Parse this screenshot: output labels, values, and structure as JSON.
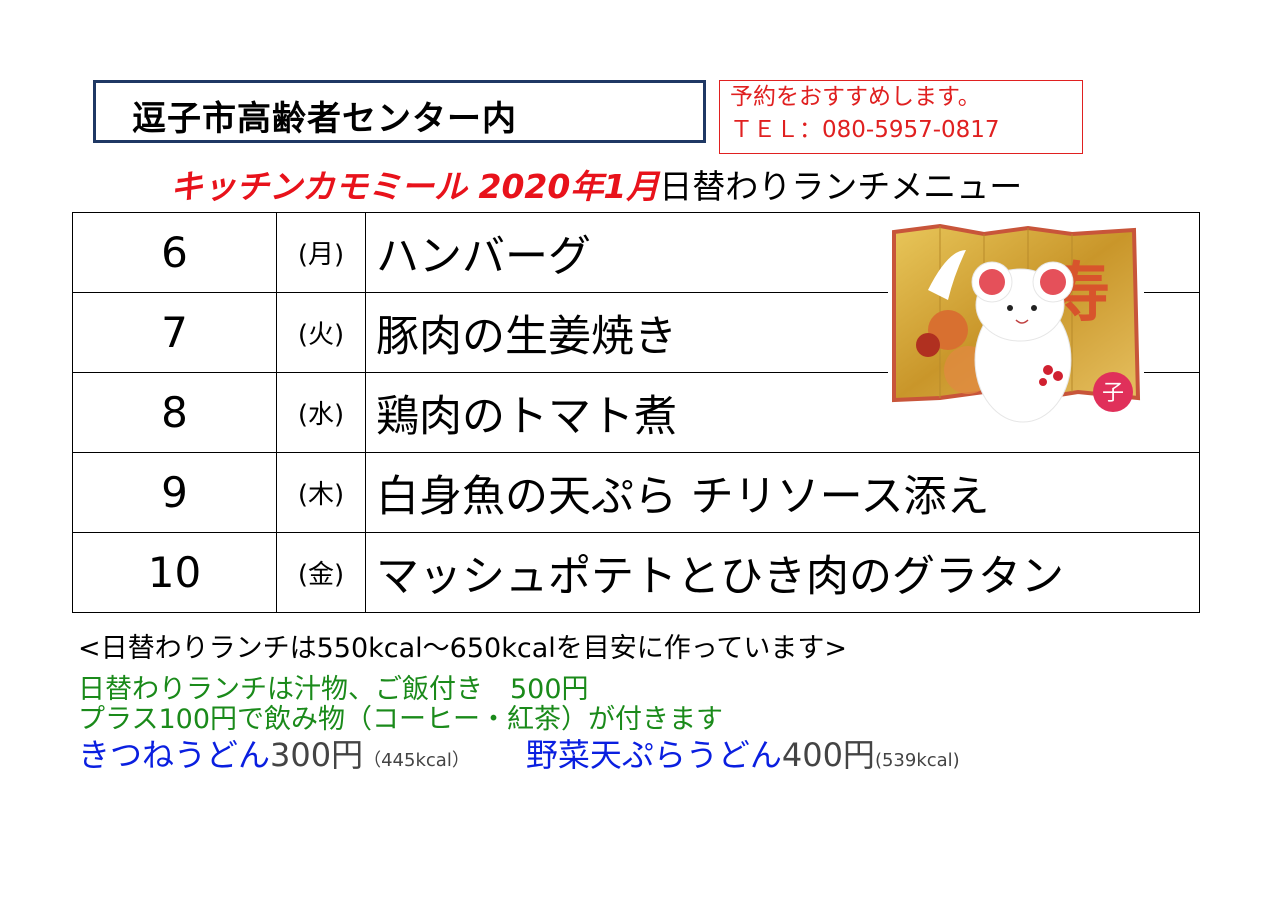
{
  "header": {
    "venue": "逗子市高齢者センター内",
    "reservation_note": "予約をおすすめします。",
    "phone": "ＴＥＬ：080-5957-0817",
    "title_shop": "キッチンカモミール 2020年1月",
    "title_rest": "日替わりランチメニュー"
  },
  "menu": [
    {
      "day": "6",
      "weekday": "(月)",
      "dish": "ハンバーグ"
    },
    {
      "day": "7",
      "weekday": "(火)",
      "dish": "豚肉の生姜焼き"
    },
    {
      "day": "8",
      "weekday": "(水)",
      "dish": "鶏肉のトマト煮"
    },
    {
      "day": "9",
      "weekday": "(木)",
      "dish": "白身魚の天ぷら チリソース添え"
    },
    {
      "day": "10",
      "weekday": "(金)",
      "dish": "マッシュポテトとひき肉のグラタン"
    }
  ],
  "illustration": {
    "kanji_kotobuki": "寿",
    "kanji_ne": "子"
  },
  "notes": {
    "calorie": "<日替わりランチは550kcal～650kcalを目安に作っています>",
    "lunch_price": "日替わりランチは汁物、ご飯付き　500円",
    "drink": "プラス100円で飲み物（コーヒー・紅茶）が付きます",
    "udon1_name": "きつねうどん",
    "udon1_price": "300円",
    "udon1_kcal": "（445kcal）",
    "udon2_name": "野菜天ぷらうどん",
    "udon2_price": "400円",
    "udon2_kcal": "(539kcal)"
  },
  "colors": {
    "title_red": "#e8121b",
    "green": "#1a8a1a",
    "blue": "#0a1fe0",
    "venue_border": "#1f3864"
  }
}
